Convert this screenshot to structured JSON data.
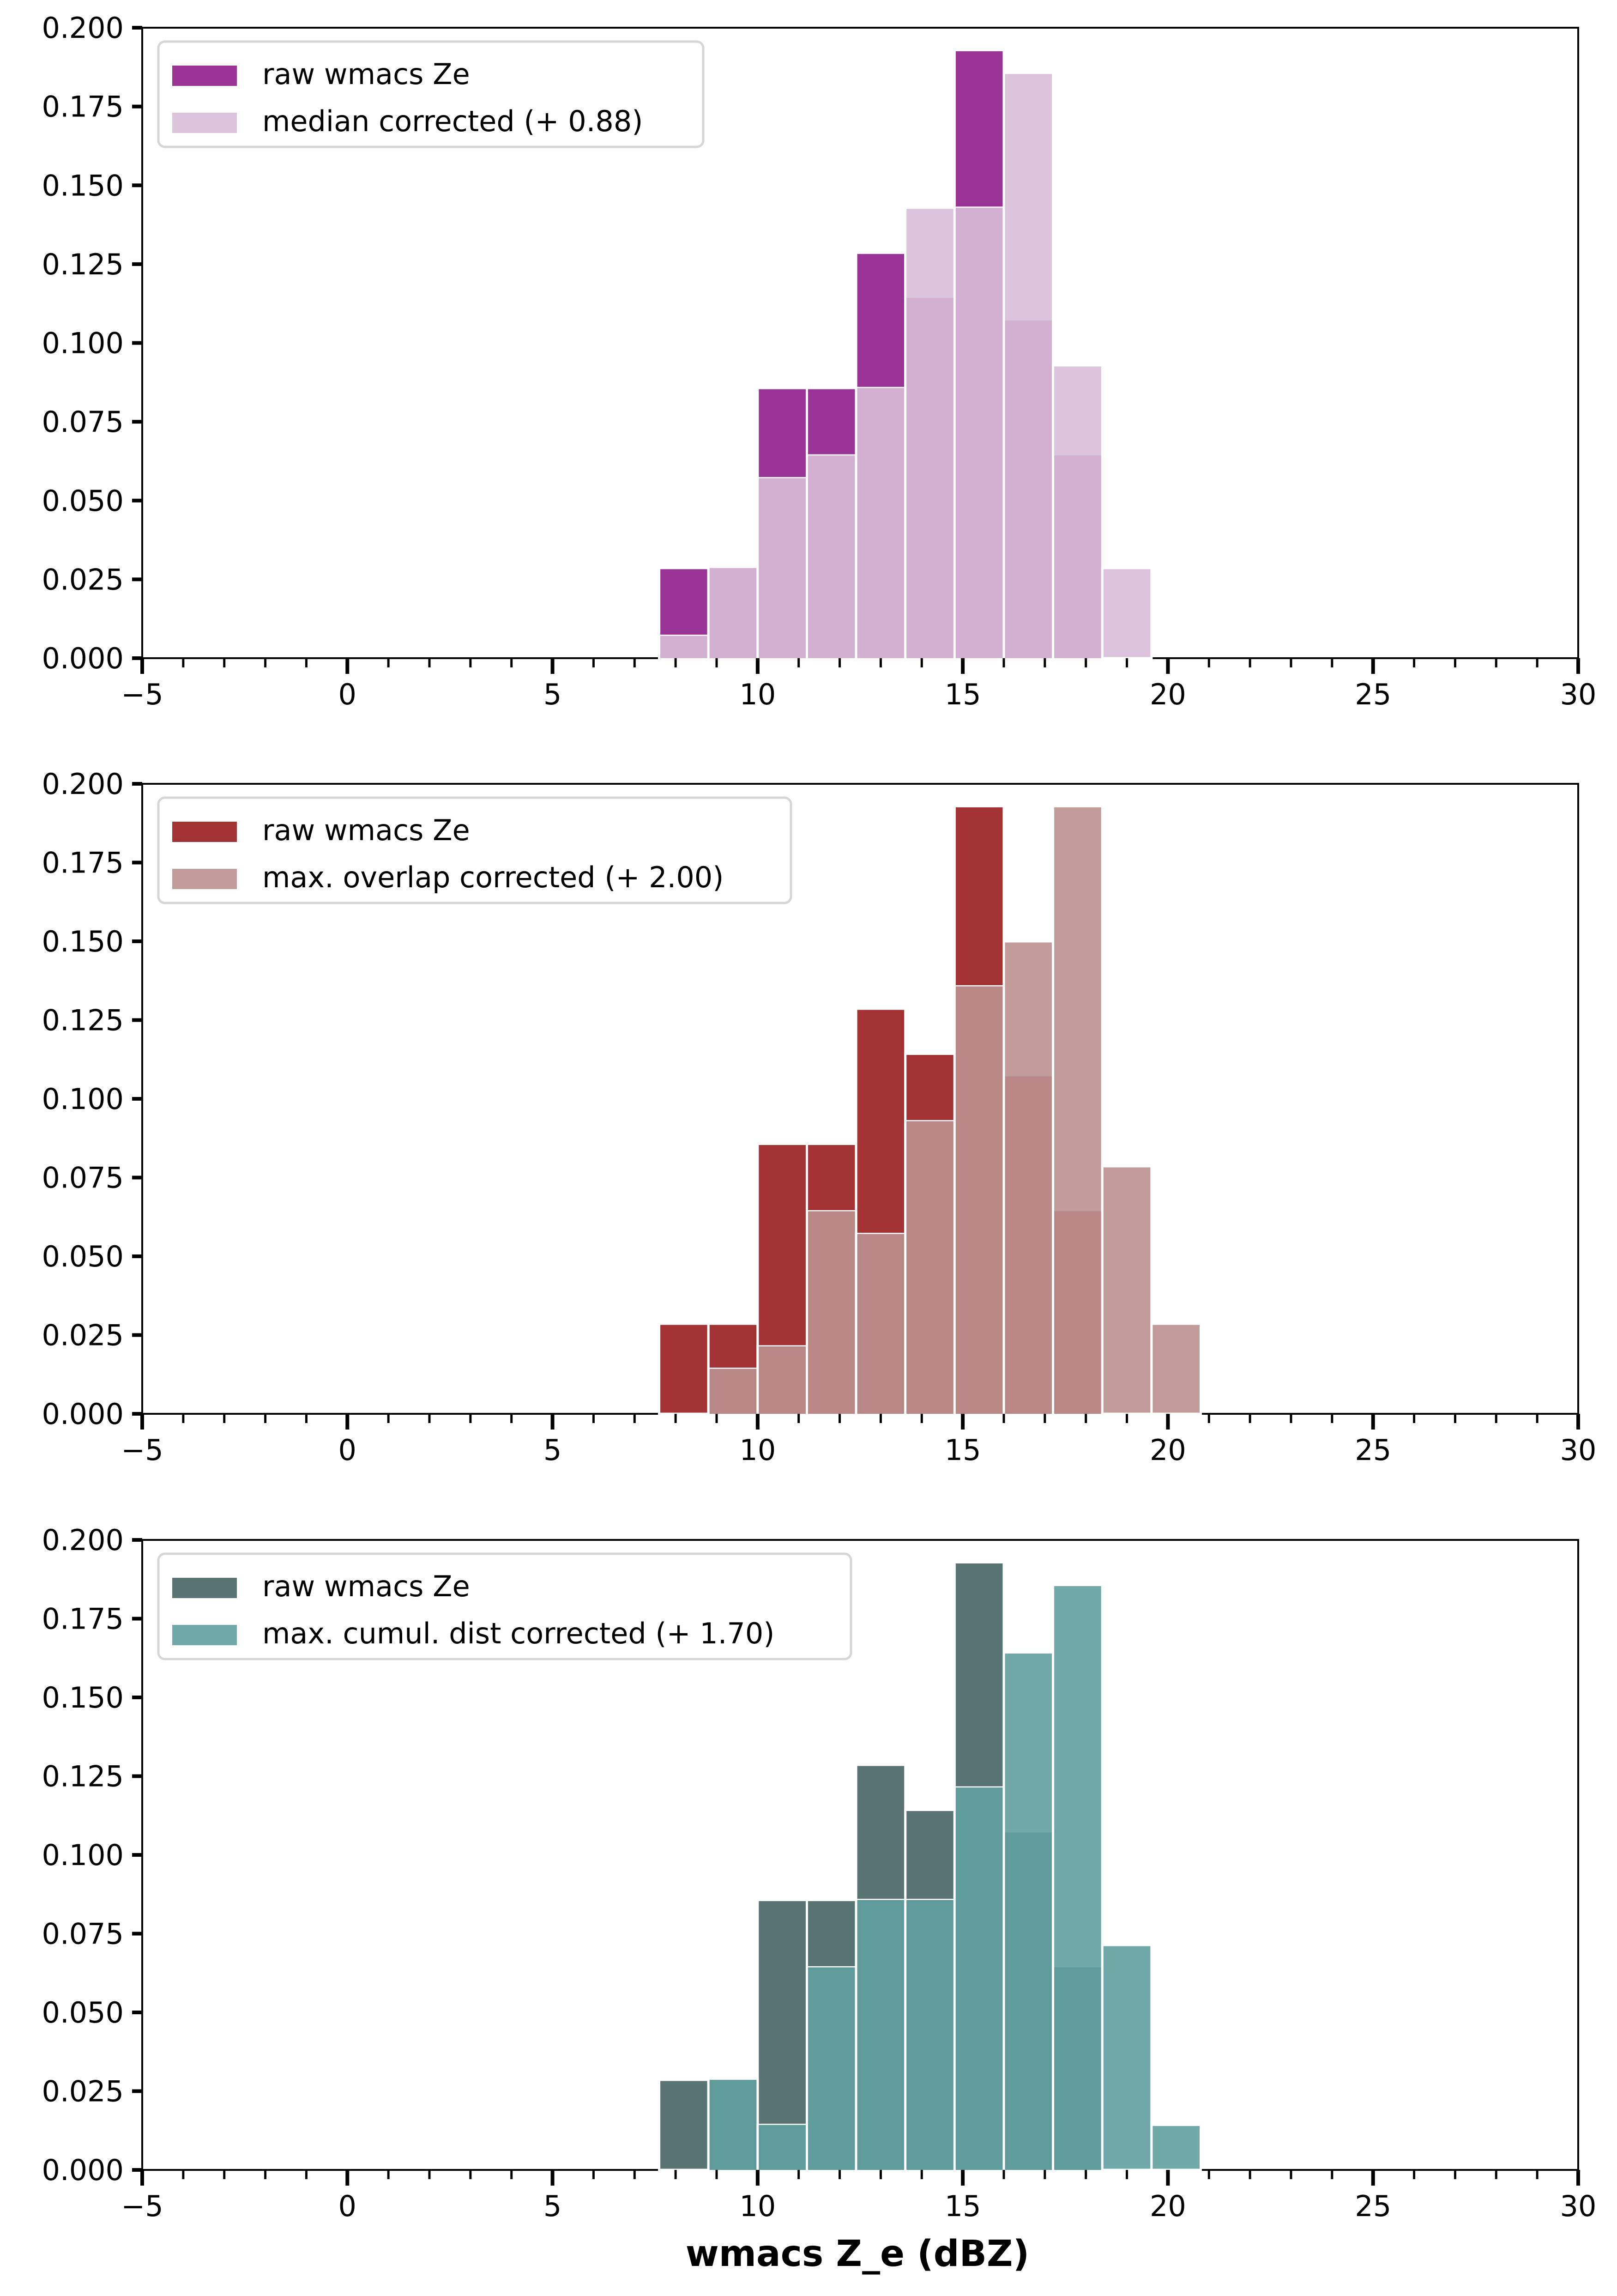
{
  "chart_data": [
    {
      "type": "bar",
      "subtype": "overlaid-histogram",
      "title": "",
      "xlabel": "",
      "ylabel": "",
      "xlim": [
        -5,
        30
      ],
      "ylim": [
        0,
        0.2
      ],
      "xticks": [
        "−5",
        "0",
        "5",
        "10",
        "15",
        "20",
        "25",
        "30"
      ],
      "yticks": [
        "0.000",
        "0.025",
        "0.050",
        "0.075",
        "0.100",
        "0.125",
        "0.150",
        "0.175",
        "0.200"
      ],
      "grid": false,
      "legend_position": "top-left",
      "bin_edges": [
        7.6,
        8.8,
        10.0,
        11.2,
        12.4,
        13.6,
        14.8,
        16.0,
        17.2,
        18.4,
        19.6,
        20.8
      ],
      "series": [
        {
          "name": "raw wmacs Ze",
          "color": "#9a3396",
          "alpha": 1.0,
          "values": [
            0.0286,
            0.0286,
            0.0857,
            0.0857,
            0.1286,
            0.1143,
            0.1929,
            0.1071,
            0.0643,
            0,
            0
          ]
        },
        {
          "name": "median corrected (+ 0.88)",
          "color": "#dcc4dc",
          "alpha": 1.0,
          "values": [
            0.0071,
            0.0286,
            0.0571,
            0.0643,
            0.0857,
            0.1429,
            0.1429,
            0.1857,
            0.0929,
            0.0286,
            0
          ]
        }
      ],
      "overlap_color": "#d3afd1"
    },
    {
      "type": "bar",
      "subtype": "overlaid-histogram",
      "title": "",
      "xlabel": "",
      "ylabel": "",
      "xlim": [
        -5,
        30
      ],
      "ylim": [
        0,
        0.2
      ],
      "xticks": [
        "−5",
        "0",
        "5",
        "10",
        "15",
        "20",
        "25",
        "30"
      ],
      "yticks": [
        "0.000",
        "0.025",
        "0.050",
        "0.075",
        "0.100",
        "0.125",
        "0.150",
        "0.175",
        "0.200"
      ],
      "grid": false,
      "legend_position": "top-left",
      "bin_edges": [
        7.6,
        8.8,
        10.0,
        11.2,
        12.4,
        13.6,
        14.8,
        16.0,
        17.2,
        18.4,
        19.6,
        20.8
      ],
      "series": [
        {
          "name": "raw wmacs Ze",
          "color": "#a23234",
          "alpha": 1.0,
          "values": [
            0.0286,
            0.0286,
            0.0857,
            0.0857,
            0.1286,
            0.1143,
            0.1929,
            0.1071,
            0.0643,
            0,
            0
          ]
        },
        {
          "name": "max. overlap corrected (+ 2.00)",
          "color": "#c29b9b",
          "alpha": 1.0,
          "values": [
            0,
            0.0143,
            0.0214,
            0.0643,
            0.0571,
            0.0929,
            0.1357,
            0.15,
            0.1929,
            0.0786,
            0.0286
          ]
        }
      ],
      "overlap_color": "#b88786"
    },
    {
      "type": "bar",
      "subtype": "overlaid-histogram",
      "title": "",
      "xlabel": "wmacs Z_e (dBZ)",
      "ylabel": "",
      "xlim": [
        -5,
        30
      ],
      "ylim": [
        0,
        0.2
      ],
      "xticks": [
        "−5",
        "0",
        "5",
        "10",
        "15",
        "20",
        "25",
        "30"
      ],
      "yticks": [
        "0.000",
        "0.025",
        "0.050",
        "0.075",
        "0.100",
        "0.125",
        "0.150",
        "0.175",
        "0.200"
      ],
      "grid": false,
      "legend_position": "top-left",
      "bin_edges": [
        7.6,
        8.8,
        10.0,
        11.2,
        12.4,
        13.6,
        14.8,
        16.0,
        17.2,
        18.4,
        19.6,
        20.8
      ],
      "series": [
        {
          "name": "raw wmacs Ze",
          "color": "#5a7473",
          "alpha": 1.0,
          "values": [
            0.0286,
            0.0286,
            0.0857,
            0.0857,
            0.1286,
            0.1143,
            0.1929,
            0.1071,
            0.0643,
            0,
            0
          ]
        },
        {
          "name": "max. cumul. dist corrected (+ 1.70)",
          "color": "#71a8a8",
          "alpha": 1.0,
          "values": [
            0,
            0.0286,
            0.0143,
            0.0643,
            0.0857,
            0.0857,
            0.1214,
            0.1643,
            0.1857,
            0.0714,
            0.0143
          ]
        }
      ],
      "overlap_color": "#5f9b9b"
    }
  ]
}
